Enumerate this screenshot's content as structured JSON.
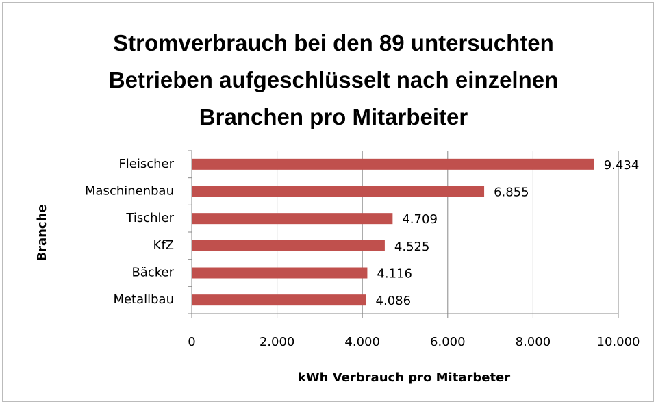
{
  "chart_data": {
    "type": "hbar",
    "title": "Stromverbrauch bei den 89 untersuchten Betrieben aufgeschlüsselt nach einzelnen Branchen pro Mitarbeiter",
    "x_label": "kWh Verbrauch pro Mitarbeter",
    "y_label": "Branche",
    "categories": [
      "Fleischer",
      "Maschinenbau",
      "Tischler",
      "KfZ",
      "Bäcker",
      "Metallbau"
    ],
    "values": [
      9434,
      6855,
      4709,
      4525,
      4116,
      4086
    ],
    "value_labels": [
      "9.434",
      "6.855",
      "4.709",
      "4.525",
      "4.116",
      "4.086"
    ],
    "color": "#c0504d",
    "xlim": [
      0,
      10000
    ],
    "xticks": [
      0,
      {
        "value": 2000,
        "label": "2.000"
      },
      {
        "value": 4000,
        "label": "4.000"
      },
      {
        "value": 6000,
        "label": "6.000"
      },
      {
        "value": 8000,
        "label": "8.000"
      },
      {
        "value": 10000,
        "label": "10.000"
      }
    ],
    "grid": true
  }
}
